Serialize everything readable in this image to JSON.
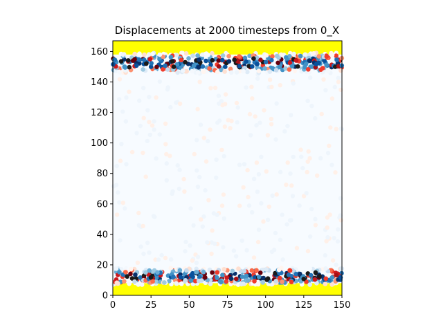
{
  "chart_data": {
    "type": "scatter",
    "title": "Displacements at 2000 timesteps from 0_X",
    "xlabel": "",
    "ylabel": "",
    "xlim": [
      0,
      150
    ],
    "ylim": [
      0,
      167
    ],
    "x_ticks": [
      0,
      25,
      50,
      75,
      100,
      125,
      150
    ],
    "y_ticks": [
      0,
      20,
      40,
      60,
      80,
      100,
      120,
      140,
      160
    ],
    "grid": false,
    "legend": "none",
    "colormap": "diverging red-white-blue",
    "boundary_color": "#ffff00",
    "regions": [
      {
        "name": "bottom fixed layer",
        "y_range": [
          0,
          8
        ],
        "color": "#ffff00"
      },
      {
        "name": "top fixed layer",
        "y_range": [
          158,
          167
        ],
        "color": "#ffff00"
      },
      {
        "name": "bottom active band",
        "y_range": [
          8,
          20
        ],
        "displacement": "large"
      },
      {
        "name": "top active band",
        "y_range": [
          146,
          158
        ],
        "displacement": "large"
      },
      {
        "name": "interior",
        "y_range": [
          20,
          146
        ],
        "displacement": "near zero"
      }
    ]
  }
}
